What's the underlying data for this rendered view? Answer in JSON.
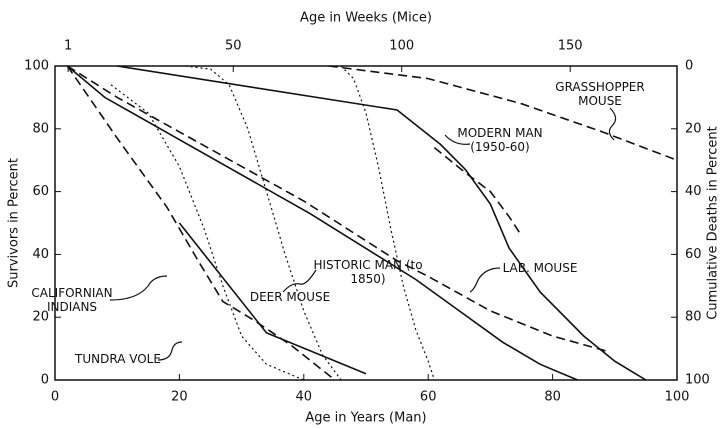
{
  "chart_data": {
    "type": "line",
    "xlabel": "Age in Years (Man)",
    "x2label": "Age in Weeks (Mice)",
    "ylabel": "Survivors in Percent",
    "y2label": "Cumulative Deaths in Percent",
    "xlim": [
      0,
      100
    ],
    "xticks": [
      0,
      20,
      40,
      60,
      80,
      100
    ],
    "x2lim": [
      -2.9,
      181.7
    ],
    "x2ticks": [
      1,
      50,
      100,
      150
    ],
    "ylim": [
      0,
      100
    ],
    "yticks": [
      0,
      20,
      40,
      60,
      80,
      100
    ],
    "y2lim": [
      100,
      0
    ],
    "y2ticks": [
      0,
      20,
      40,
      60,
      80,
      100
    ],
    "series": [
      {
        "name": "MODERN MAN (1950-60)",
        "color": "#111111",
        "dash": "solid",
        "x": [
          10,
          55,
          62,
          66,
          70,
          73,
          78,
          85,
          90,
          95
        ],
        "values": [
          100,
          86,
          75,
          67,
          56,
          42,
          28,
          14,
          6,
          0
        ]
      },
      {
        "name": "HISTORIC MAN (to 1850)",
        "color": "#111111",
        "dash": "solid",
        "x": [
          2,
          8,
          41,
          58,
          65,
          72,
          78,
          84
        ],
        "values": [
          100,
          90,
          53,
          32,
          22,
          12,
          5,
          0
        ]
      },
      {
        "name": "CALIFORNIAN INDIANS",
        "color": "#111111",
        "dash": "solid",
        "x": [
          20,
          34,
          50
        ],
        "values": [
          50,
          15,
          2
        ]
      },
      {
        "name": "GRASSHOPPER MOUSE",
        "color": "#111111",
        "dash": "dashed",
        "x": [
          44,
          60,
          75,
          88,
          100
        ],
        "values": [
          100,
          96,
          88,
          79,
          70
        ]
      },
      {
        "name": "LAB. MOUSE",
        "color": "#111111",
        "dash": "dashed",
        "x": [
          61,
          66,
          70,
          73,
          75
        ],
        "values": [
          74,
          66,
          60,
          52,
          46
        ]
      },
      {
        "name": "DEER MOUSE",
        "color": "#111111",
        "dash": "dashed",
        "x": [
          2,
          10,
          20,
          40,
          55,
          60,
          70,
          80,
          89
        ],
        "values": [
          100,
          90,
          79,
          57,
          38,
          33,
          22,
          14,
          9
        ]
      },
      {
        "name": "TUNDRA VOLE",
        "color": "#111111",
        "dash": "dashed",
        "x": [
          2,
          10,
          18,
          23,
          27,
          32,
          38,
          45
        ],
        "values": [
          100,
          77,
          55,
          38,
          25,
          19,
          11,
          0
        ]
      },
      {
        "color": "#111111",
        "dash": "dotted",
        "x": [
          9,
          15,
          20,
          24,
          27,
          30,
          34,
          40
        ],
        "values": [
          94,
          85,
          68,
          48,
          30,
          14,
          5,
          0
        ]
      },
      {
        "color": "#111111",
        "dash": "dotted",
        "x": [
          21,
          25,
          28,
          31,
          34,
          37,
          40,
          43,
          46
        ],
        "values": [
          100,
          99,
          94,
          80,
          60,
          40,
          22,
          8,
          0
        ]
      },
      {
        "color": "#111111",
        "dash": "dotted",
        "x": [
          46,
          48,
          50,
          52,
          54,
          56,
          58,
          60,
          61
        ],
        "values": [
          100,
          96,
          85,
          68,
          48,
          30,
          16,
          6,
          0
        ]
      }
    ]
  }
}
